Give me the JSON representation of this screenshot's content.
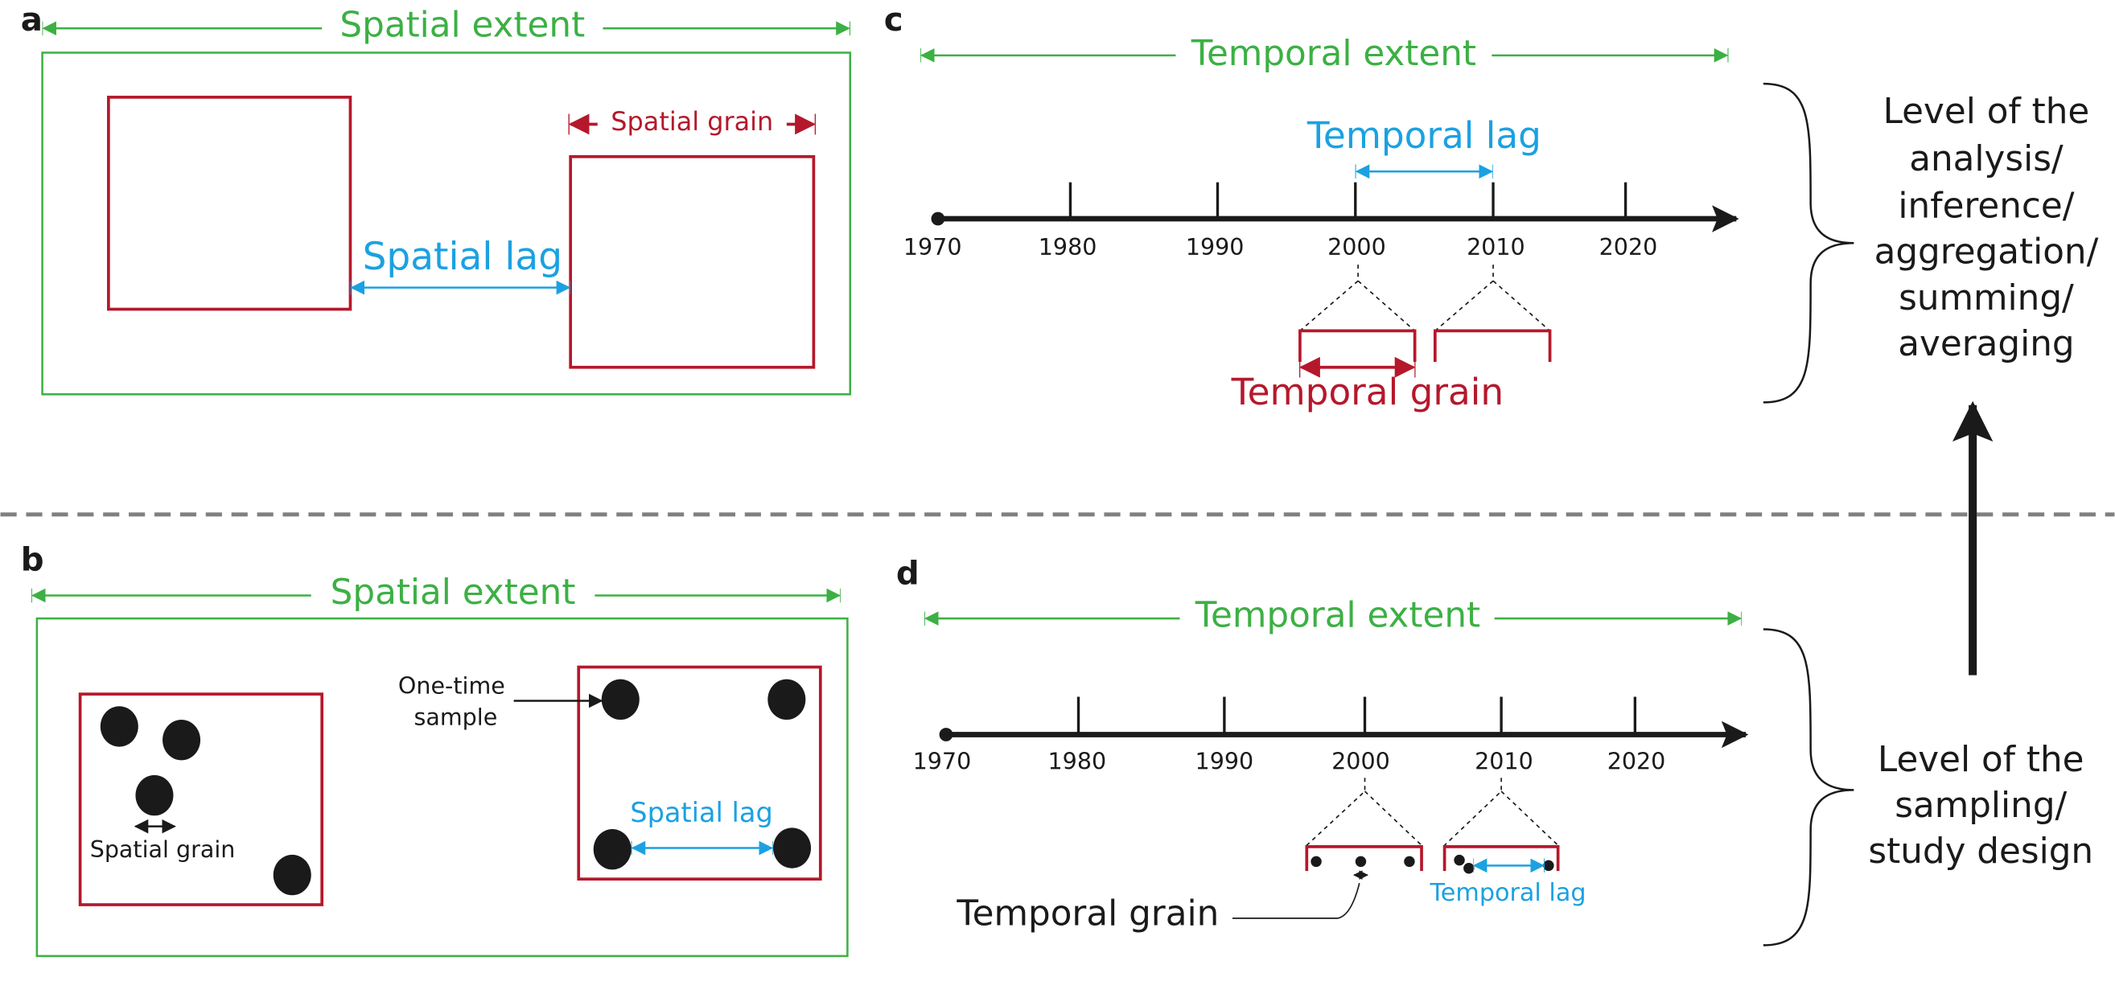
{
  "panel_a": {
    "label": "a",
    "extent": "Spatial extent",
    "grain": "Spatial grain",
    "lag": "Spatial lag"
  },
  "panel_b": {
    "label": "b",
    "extent": "Spatial extent",
    "sample": [
      "One-time",
      "sample"
    ],
    "grain": "Spatial grain",
    "lag": "Spatial lag"
  },
  "panel_c": {
    "label": "c",
    "extent": "Temporal extent",
    "lag": "Temporal lag",
    "grain": "Temporal grain",
    "years": [
      "1970",
      "1980",
      "1990",
      "2000",
      "2010",
      "2020"
    ]
  },
  "panel_d": {
    "label": "d",
    "extent": "Temporal extent",
    "lag": "Temporal lag",
    "grain": "Temporal grain",
    "years": [
      "1970",
      "1980",
      "1990",
      "2000",
      "2010",
      "2020"
    ]
  },
  "levels": {
    "analysis": [
      "Level of the",
      "analysis/",
      "inference/",
      "aggregation/",
      "summing/",
      "averaging"
    ],
    "sampling": [
      "Level of the",
      "sampling/",
      "study design"
    ]
  }
}
